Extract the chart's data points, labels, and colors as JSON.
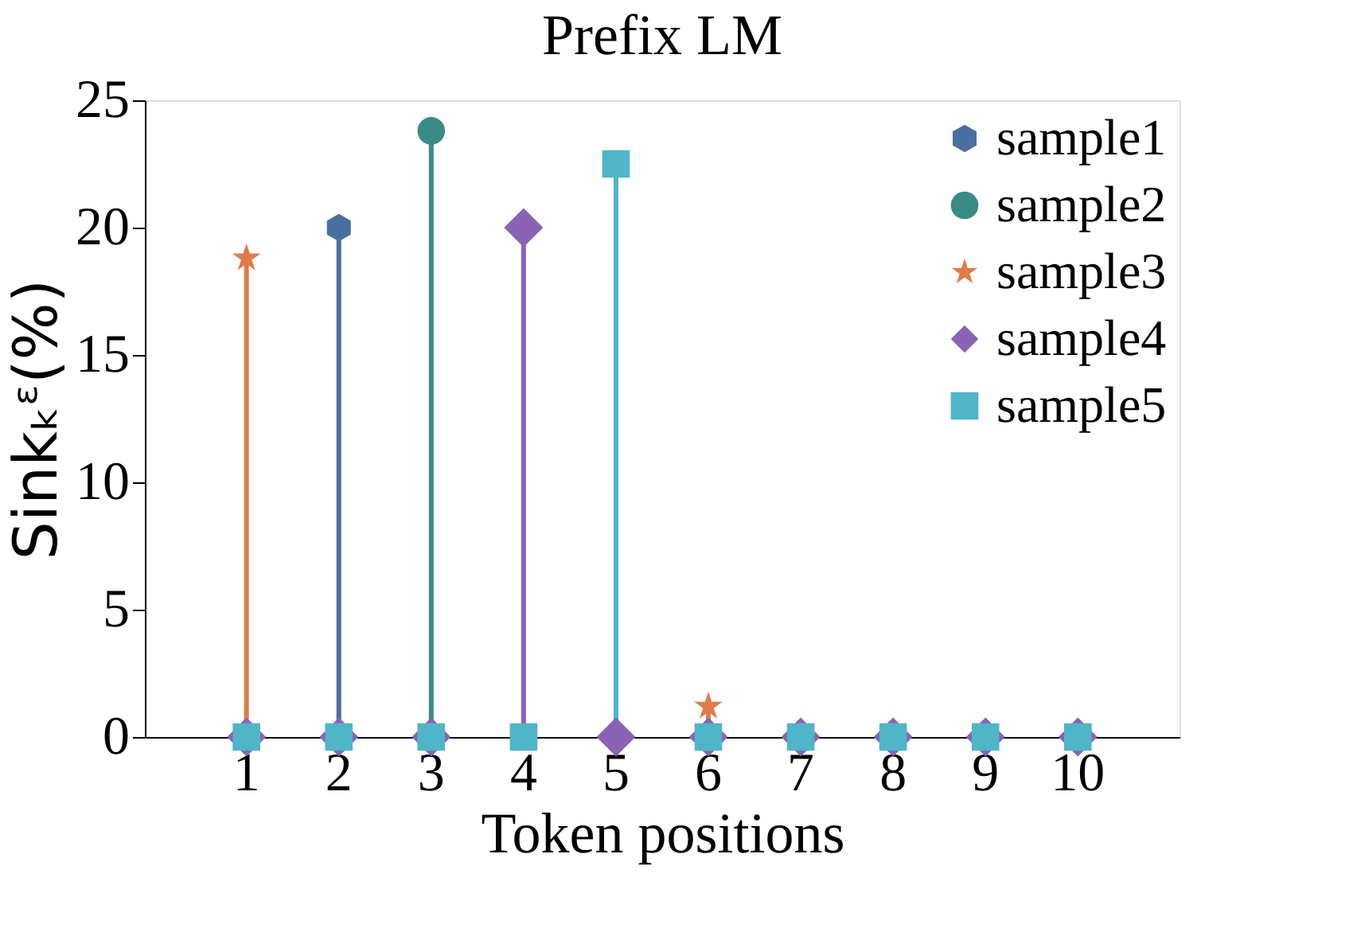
{
  "chart_data": {
    "type": "lollipop",
    "title": "Prefix LM",
    "xlabel": "Token positions",
    "ylabel": "Sinkₖᵋ(%)",
    "categories": [
      "1",
      "2",
      "3",
      "4",
      "5",
      "6",
      "7",
      "8",
      "9",
      "10"
    ],
    "series": [
      {
        "name": "sample1",
        "color": "#4a6fa0",
        "values": [
          null,
          20,
          null,
          null,
          null,
          null,
          null,
          null,
          null,
          null
        ]
      },
      {
        "name": "sample2",
        "color": "#3a8a86",
        "marker": "circle",
        "values": [
          null,
          null,
          23.8,
          null,
          null,
          null,
          null,
          null,
          null,
          null
        ]
      },
      {
        "name": "sample3",
        "color": "#e07b4a",
        "marker": "star",
        "values": [
          18.8,
          null,
          null,
          null,
          null,
          1.2,
          null,
          null,
          null,
          null
        ]
      },
      {
        "name": "sample4",
        "color": "#8a63b5",
        "marker": "diamond",
        "values": [
          0,
          0,
          0,
          20,
          0,
          0,
          0,
          0,
          0,
          0
        ]
      },
      {
        "name": "sample5",
        "color": "#4fb5c9",
        "marker": "square",
        "values": [
          0,
          0,
          0,
          0,
          22.5,
          0,
          0,
          0,
          0,
          0
        ]
      }
    ],
    "ylim": [
      0,
      25
    ],
    "yticks": [
      0,
      5,
      10,
      15,
      20,
      25
    ],
    "grid": false,
    "legend": "top right"
  }
}
